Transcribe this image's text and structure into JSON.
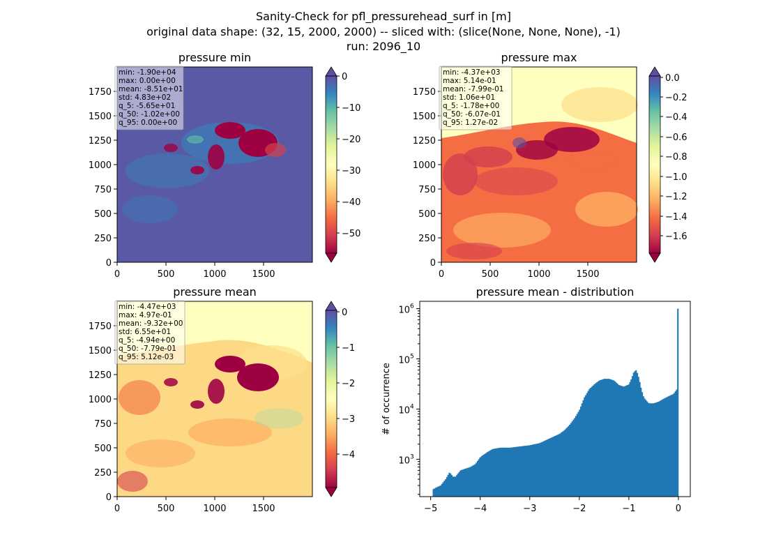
{
  "figure": {
    "title_lines": [
      "Sanity-Check for pfl_pressurehead_surf in [m]",
      "original data shape: (32, 15, 2000, 2000) -- sliced with: (slice(None, None, None), -1)",
      "run: 2096_10"
    ]
  },
  "colors": {
    "histogram_bar": "#1f77b4",
    "cmap_spectral": [
      "#9e0142",
      "#d53e4f",
      "#f46d43",
      "#fdae61",
      "#fee08b",
      "#ffffbf",
      "#e6f598",
      "#abdda4",
      "#66c2a5",
      "#3288bd",
      "#5e4fa2"
    ]
  },
  "chart_data": [
    {
      "type": "heatmap",
      "title": "pressure min",
      "x_ticks": [
        "0",
        "500",
        "1000",
        "1500"
      ],
      "y_ticks": [
        "0",
        "250",
        "500",
        "750",
        "1000",
        "1250",
        "1500",
        "1750"
      ],
      "xlim": [
        0,
        2000
      ],
      "ylim": [
        0,
        2000
      ],
      "colormap": "Spectral",
      "colorbar": {
        "vmin": -58,
        "vmax": 0,
        "extend": "both",
        "ticks": [
          "0",
          "−10",
          "−20",
          "−30",
          "−40",
          "−50"
        ],
        "tick_values": [
          0,
          -10,
          -20,
          -30,
          -40,
          -50
        ]
      },
      "stats": [
        "min: -1.90e+04",
        "max: 0.00e+00",
        "mean: -8.51e+01",
        "std: 4.83e+02",
        "q_5: -5.65e+01",
        "q_50: -1.02e+00",
        "q_95: 0.00e+00"
      ]
    },
    {
      "type": "heatmap",
      "title": "pressure max",
      "x_ticks": [
        "0",
        "500",
        "1000",
        "1500"
      ],
      "y_ticks": [
        "0",
        "250",
        "500",
        "750",
        "1000",
        "1250",
        "1500",
        "1750"
      ],
      "xlim": [
        0,
        2000
      ],
      "ylim": [
        0,
        2000
      ],
      "colormap": "Spectral",
      "colorbar": {
        "vmin": -1.78,
        "vmax": 0.0127,
        "extend": "both",
        "ticks": [
          "0.0",
          "−0.2",
          "−0.4",
          "−0.6",
          "−0.8",
          "−1.0",
          "−1.2",
          "−1.4",
          "−1.6"
        ],
        "tick_values": [
          0.0,
          -0.2,
          -0.4,
          -0.6,
          -0.8,
          -1.0,
          -1.2,
          -1.4,
          -1.6
        ]
      },
      "stats": [
        "min: -4.37e+03",
        "max: 5.14e-01",
        "mean: -7.99e-01",
        "std: 1.06e+01",
        "q_5: -1.78e+00",
        "q_50: -6.07e-01",
        "q_95: 1.27e-02"
      ]
    },
    {
      "type": "heatmap",
      "title": "pressure mean",
      "x_ticks": [
        "0",
        "500",
        "1000",
        "1500"
      ],
      "y_ticks": [
        "0",
        "250",
        "500",
        "750",
        "1000",
        "1250",
        "1500",
        "1750"
      ],
      "xlim": [
        0,
        2000
      ],
      "ylim": [
        0,
        2000
      ],
      "colormap": "Spectral",
      "colorbar": {
        "vmin": -4.94,
        "vmax": 0.00512,
        "extend": "both",
        "ticks": [
          "0",
          "−1",
          "−2",
          "−3",
          "−4"
        ],
        "tick_values": [
          0,
          -1,
          -2,
          -3,
          -4
        ]
      },
      "stats": [
        "min: -4.47e+03",
        "max: 4.97e-01",
        "mean: -9.32e+00",
        "std: 6.55e+01",
        "q_5: -4.94e+00",
        "q_50: -7.79e-01",
        "q_95: 5.12e-03"
      ]
    },
    {
      "type": "bar",
      "title": "pressure mean - distribution",
      "ylabel": "# of occurrence",
      "yscale": "log",
      "xlim": [
        -5.22,
        0.24
      ],
      "ylim": [
        180,
        1400000
      ],
      "x_ticks": [
        -5,
        -4,
        -3,
        -2,
        -1,
        0
      ],
      "x_tick_labels": [
        "−5",
        "−4",
        "−3",
        "−2",
        "−1",
        "0"
      ],
      "y_ticks": [
        1000,
        10000,
        100000,
        1000000
      ],
      "y_tick_bases": [
        "10",
        "10",
        "10",
        "10"
      ],
      "y_tick_exps": [
        "3",
        "4",
        "5",
        "6"
      ],
      "bin_range": [
        -4.96,
        0.0
      ],
      "profile_x": [
        -4.96,
        -4.9,
        -4.8,
        -4.7,
        -4.62,
        -4.55,
        -4.5,
        -4.4,
        -4.3,
        -4.2,
        -4.1,
        -4.0,
        -3.95,
        -3.85,
        -3.75,
        -3.6,
        -3.5,
        -3.4,
        -3.2,
        -3.0,
        -2.8,
        -2.6,
        -2.4,
        -2.3,
        -2.2,
        -2.1,
        -2.0,
        -1.9,
        -1.8,
        -1.7,
        -1.6,
        -1.5,
        -1.4,
        -1.3,
        -1.2,
        -1.1,
        -1.0,
        -0.95,
        -0.9,
        -0.85,
        -0.8,
        -0.75,
        -0.7,
        -0.6,
        -0.5,
        -0.4,
        -0.3,
        -0.2,
        -0.1,
        -0.03,
        -0.01
      ],
      "profile_y": [
        250,
        270,
        300,
        400,
        550,
        450,
        450,
        600,
        650,
        700,
        800,
        1100,
        1200,
        1400,
        1600,
        1700,
        1700,
        1700,
        1800,
        1900,
        2100,
        2600,
        3200,
        3800,
        4800,
        6500,
        9500,
        17000,
        25000,
        31000,
        37000,
        40000,
        40000,
        37000,
        30000,
        28000,
        31000,
        40000,
        55000,
        60000,
        42000,
        25000,
        17000,
        13000,
        13000,
        14000,
        16000,
        18000,
        20000,
        25000,
        25000
      ],
      "spike": {
        "x": 0.0,
        "y": 1000000
      }
    }
  ]
}
